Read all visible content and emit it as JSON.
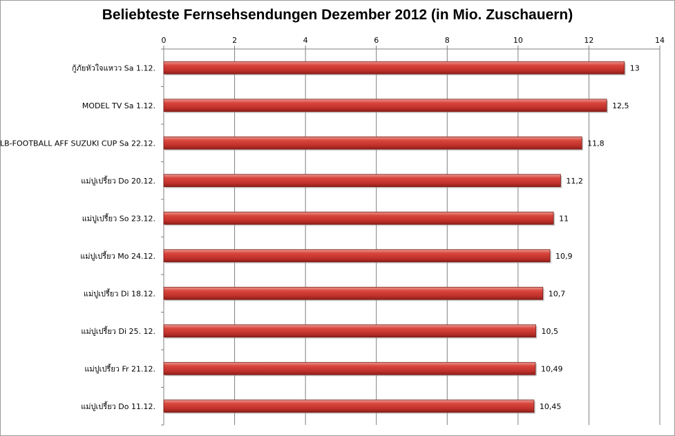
{
  "chart_data": {
    "type": "bar",
    "orientation": "horizontal",
    "title": "Beliebteste Fernsehsendungen Dezember 2012 (in Mio. Zuschauern)",
    "xlabel": "",
    "ylabel": "",
    "xlim": [
      0,
      14
    ],
    "ticks": [
      0,
      2,
      4,
      6,
      8,
      10,
      12,
      14
    ],
    "tick_position": "top",
    "grid": true,
    "legend": "none",
    "bar_color": "#c0312b",
    "categories": [
      "กู้ภัยหัวใจแหวว  Sa 1.12.",
      "MODEL TV Sa 1.12.",
      "LB-FOOTBALL AFF SUZUKI CUP Sa 22.12.",
      "แม่ปูเปรี้ยว  Do 20.12.",
      "แม่ปูเปรี้ยว  So 23.12.",
      "แม่ปูเปรี้ยว  Mo 24.12.",
      "แม่ปูเปรี้ยว  Di 18.12.",
      "แม่ปูเปรี้ยว  Di 25. 12.",
      "แม่ปูเปรี้ยว  Fr 21.12.",
      "แม่ปูเปรี้ยว  Do 11.12."
    ],
    "values": [
      13,
      12.5,
      11.8,
      11.2,
      11,
      10.9,
      10.7,
      10.5,
      10.49,
      10.45
    ],
    "value_labels": [
      "13",
      "12,5",
      "11,8",
      "11,2",
      "11",
      "10,9",
      "10,7",
      "10,5",
      "10,49",
      "10,45"
    ]
  }
}
